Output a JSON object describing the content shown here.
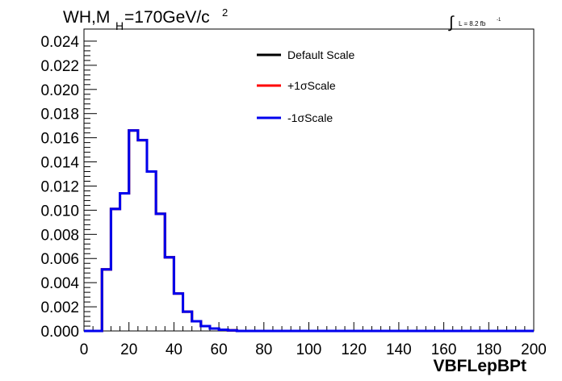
{
  "chart_data": {
    "type": "line",
    "title_main": "WH,M",
    "title_sub": "H",
    "title_rest": "=170GeV/c",
    "title_sup": "2",
    "lumi_integral": "∫",
    "lumi_text": "L = 8.2 fb",
    "lumi_sup": "-1",
    "xlabel": "VBFLepBPt",
    "ylabel": "",
    "xlim": [
      0,
      200
    ],
    "ylim": [
      0,
      0.025
    ],
    "x_ticks": [
      0,
      20,
      40,
      60,
      80,
      100,
      120,
      140,
      160,
      180,
      200
    ],
    "x_tick_labels": [
      "0",
      "20",
      "40",
      "60",
      "80",
      "100",
      "120",
      "140",
      "160",
      "180",
      "200"
    ],
    "y_ticks": [
      0,
      0.002,
      0.004,
      0.006,
      0.008,
      0.01,
      0.012,
      0.014,
      0.016,
      0.018,
      0.02,
      0.022,
      0.024
    ],
    "y_tick_labels": [
      "0.000",
      "0.002",
      "0.004",
      "0.006",
      "0.008",
      "0.010",
      "0.012",
      "0.014",
      "0.016",
      "0.018",
      "0.020",
      "0.022",
      "0.024"
    ],
    "bin_edges": [
      0,
      4,
      8,
      12,
      16,
      20,
      24,
      28,
      32,
      36,
      40,
      44,
      48,
      52,
      56,
      60,
      64,
      68,
      72,
      76,
      80,
      84,
      88,
      92,
      96,
      100,
      104,
      108,
      112,
      116,
      120,
      124,
      128,
      132,
      136,
      140,
      144,
      148,
      152,
      156,
      160,
      164,
      168,
      172,
      176,
      180,
      184,
      188,
      192,
      196,
      200
    ],
    "legend_position": "top-center",
    "series": [
      {
        "name": "Default Scale",
        "color": "#000000",
        "values": [
          0,
          0,
          0.0051,
          0.0101,
          0.0114,
          0.0166,
          0.0158,
          0.0132,
          0.0097,
          0.0061,
          0.0031,
          0.0016,
          0.0008,
          0.0004,
          0.0002,
          0.0001,
          5e-05,
          0,
          0,
          0,
          0,
          0,
          0,
          0,
          0,
          0,
          0,
          0,
          0,
          0,
          0,
          0,
          0,
          0,
          0,
          0,
          0,
          0,
          0,
          0,
          0,
          0,
          0,
          0,
          0,
          0,
          0,
          0,
          0,
          0
        ]
      },
      {
        "name": "+1σScale",
        "color": "#ff0000",
        "values": [
          0,
          0,
          0.0051,
          0.0101,
          0.0114,
          0.0166,
          0.0158,
          0.0132,
          0.0097,
          0.0061,
          0.0031,
          0.0016,
          0.0008,
          0.0004,
          0.0002,
          0.0001,
          5e-05,
          0,
          0,
          0,
          0,
          0,
          0,
          0,
          0,
          0,
          0,
          0,
          0,
          0,
          0,
          0,
          0,
          0,
          0,
          0,
          0,
          0,
          0,
          0,
          0,
          0,
          0,
          0,
          0,
          0,
          0,
          0,
          0,
          0
        ]
      },
      {
        "name": "-1σScale",
        "color": "#0000ee",
        "values": [
          0,
          0,
          0.0051,
          0.0101,
          0.0114,
          0.0166,
          0.0158,
          0.0132,
          0.0097,
          0.0061,
          0.0031,
          0.0016,
          0.0008,
          0.0004,
          0.0002,
          0.0001,
          5e-05,
          0,
          0,
          0,
          0,
          0,
          0,
          0,
          0,
          0,
          0,
          0,
          0,
          0,
          0,
          0,
          0,
          0,
          0,
          0,
          0,
          0,
          0,
          0,
          0,
          0,
          0,
          0,
          0,
          0,
          0,
          0,
          0,
          0
        ]
      }
    ]
  }
}
